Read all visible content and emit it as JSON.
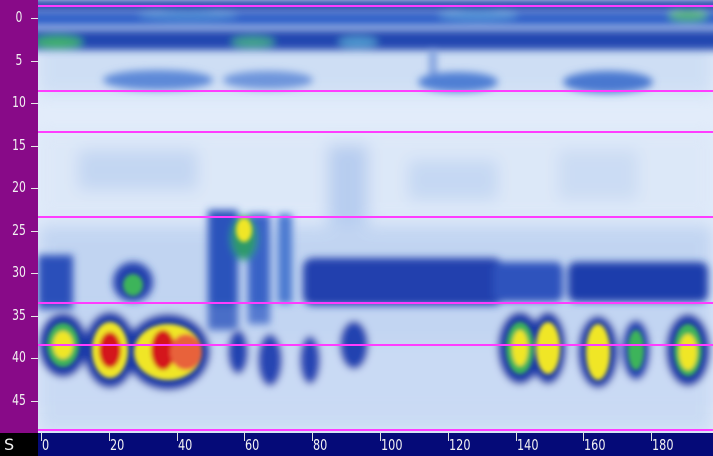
{
  "depth_axis": {
    "labels": [
      "0",
      "5",
      "10",
      "15",
      "20",
      "25",
      "30",
      "35",
      "40",
      "45"
    ]
  },
  "distance_axis": {
    "corner_label": "S",
    "labels": [
      "0",
      "20",
      "40",
      "60",
      "80",
      "100",
      "120",
      "140",
      "160",
      "180"
    ]
  },
  "colors": {
    "background_blue": "#e8f0fb",
    "depth_axis_bg": "#880a88",
    "distance_axis_bg": "#050a78",
    "marker_line": "#ff3cff",
    "hot": "#d4141e",
    "warm": "#f0e628",
    "mid": "#3cb45a"
  }
}
